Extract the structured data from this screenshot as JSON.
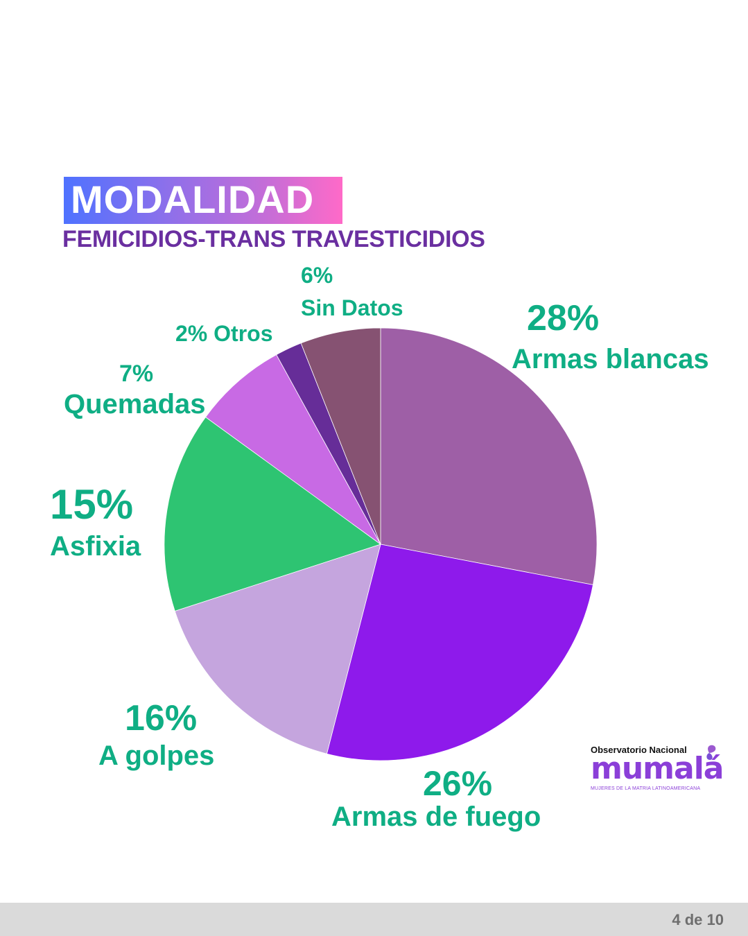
{
  "header": {
    "title": "MODALIDAD",
    "subtitle": "FEMICIDIOS-TRANS TRAVESTICIDIOS"
  },
  "chart_data": {
    "type": "pie",
    "title": "MODALIDAD",
    "subtitle": "FEMICIDIOS-TRANS TRAVESTICIDIOS",
    "start_angle": "12 o'clock, clockwise",
    "categories": [
      "Armas blancas",
      "Armas de fuego",
      "A golpes",
      "Asfixia",
      "Quemadas",
      "Otros",
      "Sin Datos"
    ],
    "values": [
      28,
      26,
      16,
      15,
      7,
      2,
      6
    ],
    "unit": "%",
    "colors": [
      "#9e5fa6",
      "#8e1aeb",
      "#c5a5de",
      "#2ec472",
      "#c86ae4",
      "#662d98",
      "#865272"
    ],
    "label_color": "#0fae84"
  },
  "labels": {
    "armas_blancas": {
      "pct": "28%",
      "name": "Armas blancas"
    },
    "armas_fuego": {
      "pct": "26%",
      "name": "Armas de fuego"
    },
    "golpes": {
      "pct": "16%",
      "name": "A golpes"
    },
    "asfixia": {
      "pct": "15%",
      "name": "Asfixia"
    },
    "quemadas": {
      "pct": "7%",
      "name": "Quemadas"
    },
    "otros": {
      "text": "2% Otros"
    },
    "sin_datos": {
      "pct": "6%",
      "name": "Sin Datos"
    }
  },
  "logo": {
    "top": "Observatorio Nacional",
    "main": "mumalá",
    "sub": "MUJERES DE LA MATRIA LATINOAMERICANA"
  },
  "footer": {
    "page": "4 de 10"
  }
}
